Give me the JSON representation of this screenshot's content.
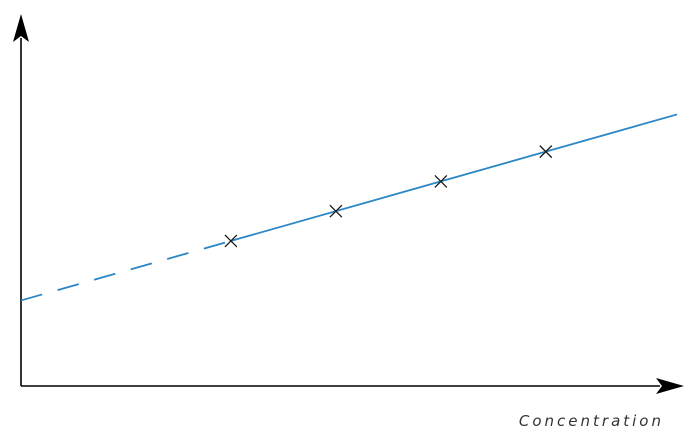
{
  "chart_data": {
    "type": "line",
    "title": "",
    "xlabel": "Concentration",
    "ylabel": "",
    "x_ticks_shown": false,
    "y_ticks_shown": false,
    "grid": false,
    "legend": "none",
    "xlim": [
      0,
      10
    ],
    "ylim": [
      0,
      10
    ],
    "series": [
      {
        "points": [
          {
            "x": 3.2,
            "y": 3.9
          },
          {
            "x": 4.8,
            "y": 4.7
          },
          {
            "x": 6.4,
            "y": 5.5
          },
          {
            "x": 8.0,
            "y": 6.3
          }
        ],
        "marker": "x",
        "color": "#2b86c5"
      }
    ],
    "fit_line": {
      "intercept": 2.3,
      "slope": 0.5,
      "x_end": 10,
      "extrapolated_x_start": 0,
      "extrapolated_x_end": 3.2,
      "color": "#2b86c5"
    }
  }
}
